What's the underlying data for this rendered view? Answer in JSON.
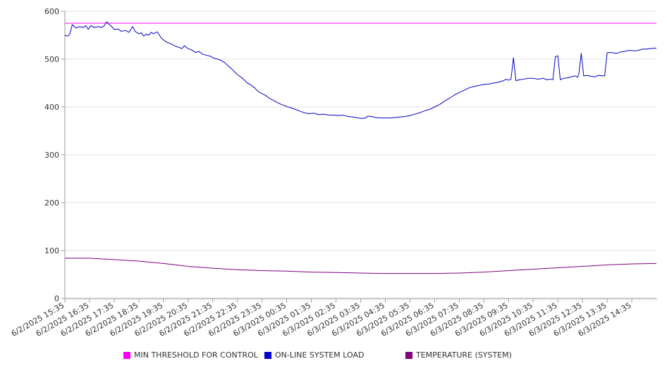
{
  "chart_data": {
    "type": "line",
    "title": "",
    "xlabel": "",
    "ylabel": "",
    "ylim": [
      0,
      600
    ],
    "yticks": [
      "0",
      "100",
      "200",
      "300",
      "400",
      "500",
      "600"
    ],
    "x_tick_labels": [
      "6/2/2025 15:35",
      "6/2/2025 16:35",
      "6/2/2025 17:35",
      "6/2/2025 18:35",
      "6/2/2025 19:35",
      "6/2/2025 20:35",
      "6/2/2025 21:35",
      "6/2/2025 22:35",
      "6/2/2025 23:35",
      "6/3/2025 00:35",
      "6/3/2025 01:35",
      "6/3/2025 02:35",
      "6/3/2025 03:35",
      "6/3/2025 04:35",
      "6/3/2025 05:35",
      "6/3/2025 06:35",
      "6/3/2025 07:35",
      "6/3/2025 08:35",
      "6/3/2025 09:35",
      "6/3/2025 10:35",
      "6/3/2025 11:35",
      "6/3/2025 12:35",
      "6/3/2025 13:35",
      "6/3/2025 14:35"
    ],
    "x_hours_range": [
      0,
      24
    ],
    "grid": true,
    "legend_position": "bottom",
    "series": [
      {
        "name": "MIN THRESHOLD FOR CONTROL",
        "color": "#ff00ff",
        "points": [
          [
            0,
            575
          ],
          [
            24,
            575
          ]
        ]
      },
      {
        "name": "ON-LINE SYSTEM LOAD",
        "color": "#0000cc",
        "points": [
          [
            0.0,
            550
          ],
          [
            0.1,
            548
          ],
          [
            0.2,
            552
          ],
          [
            0.3,
            572
          ],
          [
            0.45,
            565
          ],
          [
            0.6,
            568
          ],
          [
            0.75,
            566
          ],
          [
            0.85,
            570
          ],
          [
            0.95,
            562
          ],
          [
            1.05,
            570
          ],
          [
            1.2,
            566
          ],
          [
            1.35,
            568
          ],
          [
            1.5,
            566
          ],
          [
            1.6,
            570
          ],
          [
            1.7,
            578
          ],
          [
            1.8,
            572
          ],
          [
            1.9,
            568
          ],
          [
            2.0,
            562
          ],
          [
            2.15,
            563
          ],
          [
            2.3,
            558
          ],
          [
            2.45,
            560
          ],
          [
            2.6,
            556
          ],
          [
            2.75,
            568
          ],
          [
            2.85,
            558
          ],
          [
            3.0,
            553
          ],
          [
            3.1,
            555
          ],
          [
            3.2,
            548
          ],
          [
            3.3,
            552
          ],
          [
            3.4,
            550
          ],
          [
            3.5,
            556
          ],
          [
            3.6,
            553
          ],
          [
            3.75,
            557
          ],
          [
            3.9,
            545
          ],
          [
            4.0,
            540
          ],
          [
            4.15,
            535
          ],
          [
            4.3,
            532
          ],
          [
            4.45,
            528
          ],
          [
            4.6,
            525
          ],
          [
            4.75,
            522
          ],
          [
            4.85,
            528
          ],
          [
            5.0,
            522
          ],
          [
            5.15,
            519
          ],
          [
            5.3,
            514
          ],
          [
            5.45,
            516
          ],
          [
            5.6,
            510
          ],
          [
            5.75,
            508
          ],
          [
            5.9,
            506
          ],
          [
            6.05,
            502
          ],
          [
            6.2,
            500
          ],
          [
            6.35,
            497
          ],
          [
            6.5,
            492
          ],
          [
            6.65,
            485
          ],
          [
            6.8,
            478
          ],
          [
            6.95,
            470
          ],
          [
            7.1,
            464
          ],
          [
            7.25,
            458
          ],
          [
            7.4,
            450
          ],
          [
            7.55,
            446
          ],
          [
            7.7,
            440
          ],
          [
            7.85,
            432
          ],
          [
            8.0,
            428
          ],
          [
            8.15,
            424
          ],
          [
            8.3,
            418
          ],
          [
            8.45,
            414
          ],
          [
            8.6,
            410
          ],
          [
            8.75,
            406
          ],
          [
            8.9,
            403
          ],
          [
            9.05,
            400
          ],
          [
            9.2,
            398
          ],
          [
            9.35,
            395
          ],
          [
            9.5,
            392
          ],
          [
            9.7,
            388
          ],
          [
            9.9,
            386
          ],
          [
            10.1,
            387
          ],
          [
            10.3,
            384
          ],
          [
            10.5,
            385
          ],
          [
            10.7,
            383
          ],
          [
            10.9,
            383
          ],
          [
            11.1,
            382
          ],
          [
            11.3,
            383
          ],
          [
            11.5,
            380
          ],
          [
            11.7,
            379
          ],
          [
            11.9,
            377
          ],
          [
            12.05,
            376
          ],
          [
            12.2,
            377
          ],
          [
            12.3,
            381
          ],
          [
            12.45,
            380
          ],
          [
            12.6,
            378
          ],
          [
            12.8,
            377
          ],
          [
            13.0,
            377
          ],
          [
            13.2,
            377
          ],
          [
            13.4,
            378
          ],
          [
            13.6,
            379
          ],
          [
            13.8,
            380
          ],
          [
            14.0,
            382
          ],
          [
            14.2,
            385
          ],
          [
            14.4,
            388
          ],
          [
            14.6,
            392
          ],
          [
            14.8,
            395
          ],
          [
            15.0,
            400
          ],
          [
            15.2,
            405
          ],
          [
            15.4,
            412
          ],
          [
            15.6,
            418
          ],
          [
            15.8,
            425
          ],
          [
            16.0,
            430
          ],
          [
            16.2,
            435
          ],
          [
            16.4,
            440
          ],
          [
            16.6,
            443
          ],
          [
            16.8,
            445
          ],
          [
            17.0,
            447
          ],
          [
            17.2,
            448
          ],
          [
            17.4,
            450
          ],
          [
            17.6,
            452
          ],
          [
            17.8,
            455
          ],
          [
            17.9,
            458
          ],
          [
            18.0,
            456
          ],
          [
            18.1,
            458
          ],
          [
            18.2,
            503
          ],
          [
            18.3,
            455
          ],
          [
            18.45,
            457
          ],
          [
            18.6,
            458
          ],
          [
            18.8,
            460
          ],
          [
            19.0,
            460
          ],
          [
            19.2,
            458
          ],
          [
            19.4,
            460
          ],
          [
            19.55,
            457
          ],
          [
            19.7,
            458
          ],
          [
            19.8,
            457
          ],
          [
            19.9,
            505
          ],
          [
            20.0,
            507
          ],
          [
            20.1,
            457
          ],
          [
            20.25,
            460
          ],
          [
            20.4,
            461
          ],
          [
            20.55,
            463
          ],
          [
            20.7,
            465
          ],
          [
            20.8,
            462
          ],
          [
            20.85,
            468
          ],
          [
            20.95,
            512
          ],
          [
            21.05,
            465
          ],
          [
            21.2,
            466
          ],
          [
            21.35,
            464
          ],
          [
            21.5,
            463
          ],
          [
            21.65,
            466
          ],
          [
            21.8,
            465
          ],
          [
            21.9,
            465
          ],
          [
            22.0,
            513
          ],
          [
            22.1,
            514
          ],
          [
            22.25,
            513
          ],
          [
            22.4,
            512
          ],
          [
            22.55,
            515
          ],
          [
            22.7,
            516
          ],
          [
            22.85,
            518
          ],
          [
            23.0,
            518
          ],
          [
            23.15,
            517
          ],
          [
            23.3,
            519
          ],
          [
            23.45,
            521
          ],
          [
            23.6,
            521
          ],
          [
            23.75,
            522
          ],
          [
            23.9,
            523
          ],
          [
            24.0,
            523
          ]
        ]
      },
      {
        "name": "TEMPERATURE (SYSTEM)",
        "color": "#800080",
        "points": [
          [
            0,
            84
          ],
          [
            1,
            84
          ],
          [
            2,
            81
          ],
          [
            3,
            78
          ],
          [
            4,
            73
          ],
          [
            5,
            67
          ],
          [
            6,
            63
          ],
          [
            7,
            60
          ],
          [
            8,
            58
          ],
          [
            9,
            57
          ],
          [
            10,
            55
          ],
          [
            11,
            54
          ],
          [
            12,
            53
          ],
          [
            13,
            52
          ],
          [
            14,
            52
          ],
          [
            15,
            52
          ],
          [
            16,
            53
          ],
          [
            17,
            55
          ],
          [
            18,
            58
          ],
          [
            19,
            61
          ],
          [
            20,
            64
          ],
          [
            21,
            67
          ],
          [
            22,
            70
          ],
          [
            23,
            72
          ],
          [
            24,
            73
          ]
        ]
      }
    ]
  }
}
